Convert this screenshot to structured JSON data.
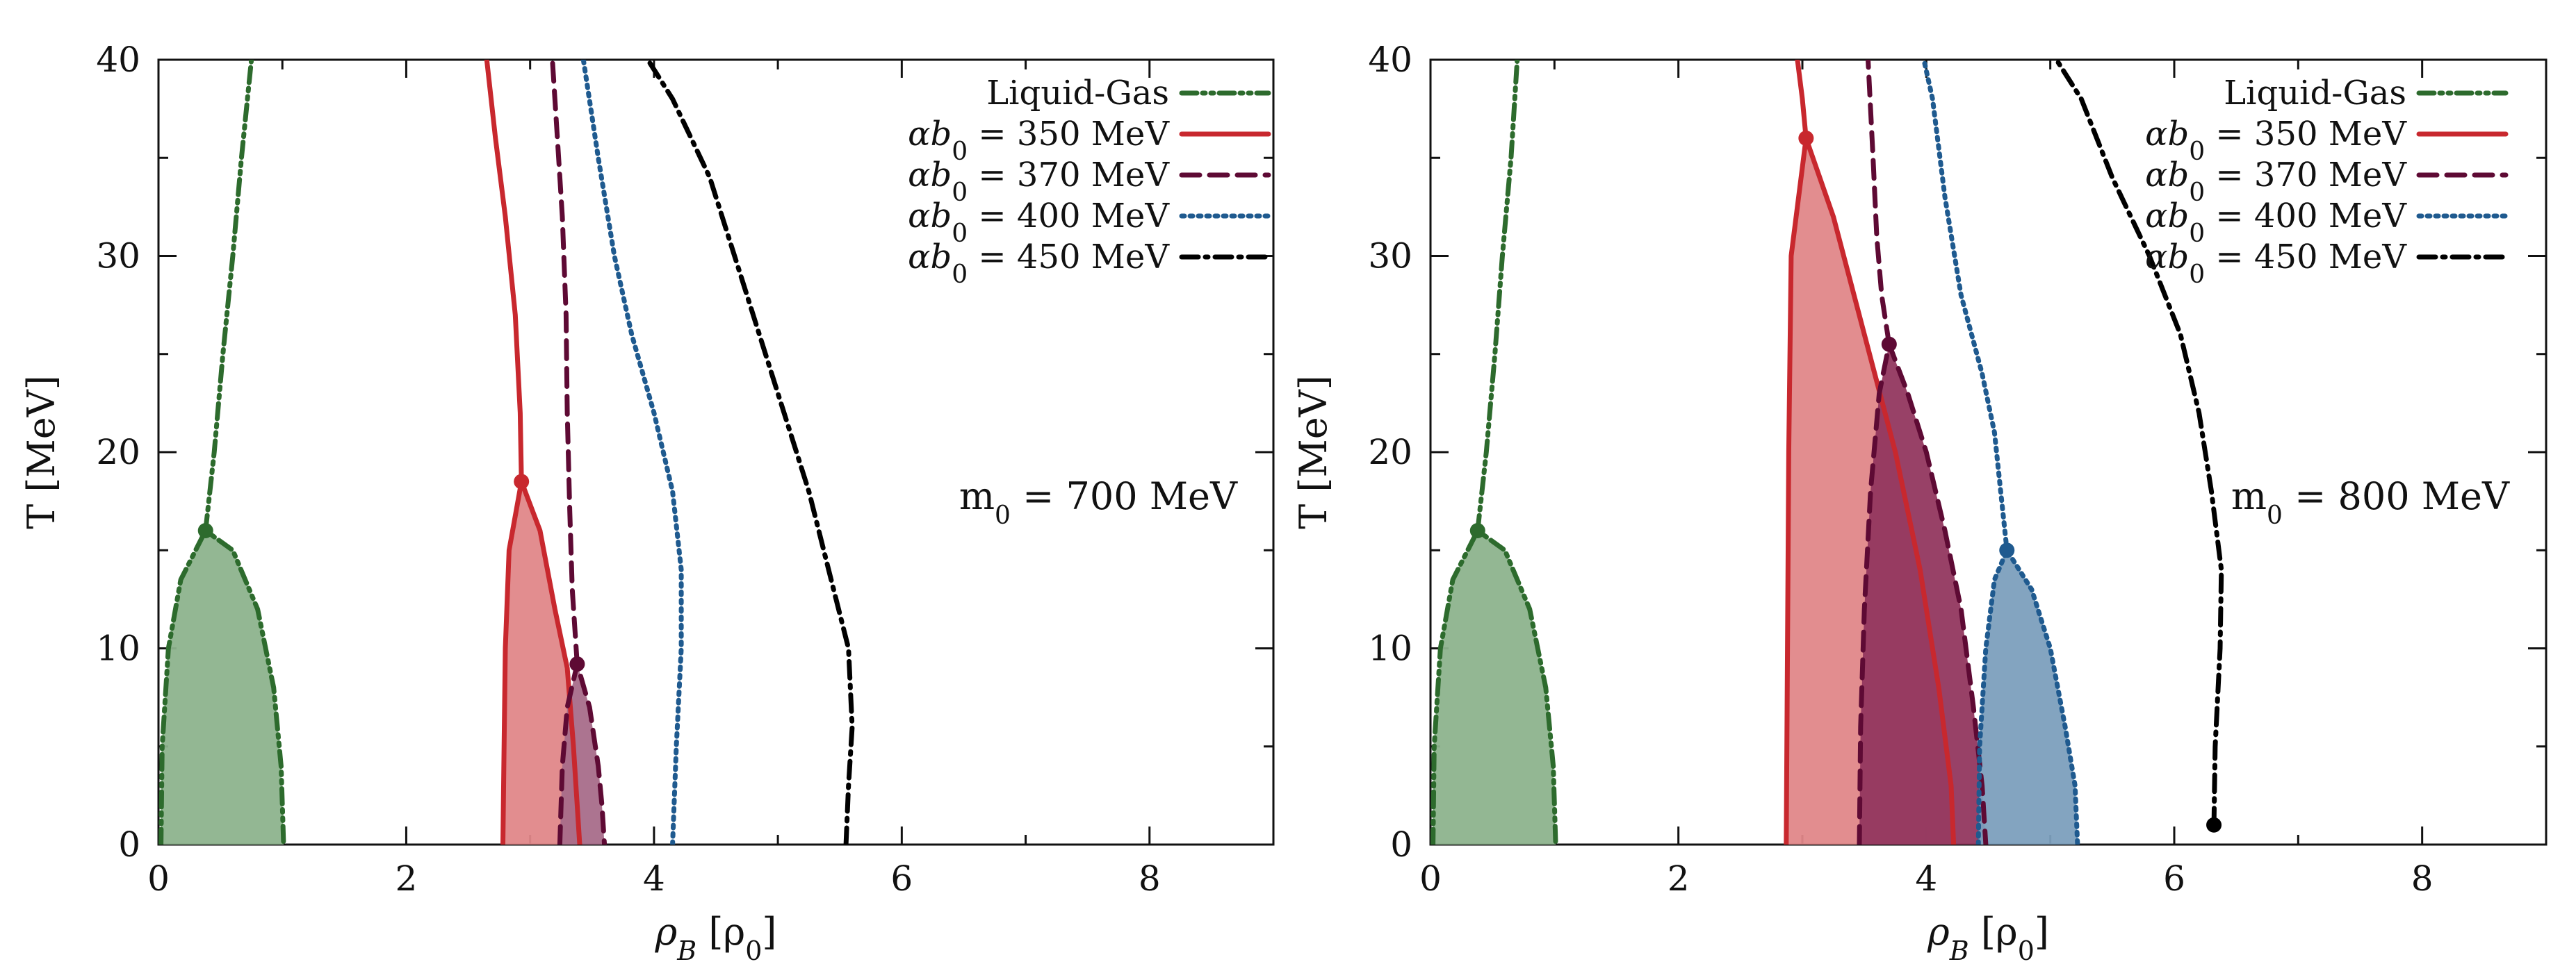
{
  "chart_data": [
    {
      "type": "line",
      "panel": "left",
      "annotation": "m0 = 700 MeV",
      "xlabel": "ρ_B [ρ_0]",
      "ylabel": "T [MeV]",
      "xlim": [
        0,
        9
      ],
      "ylim": [
        0,
        40
      ],
      "xticks": [
        0,
        2,
        4,
        6,
        8
      ],
      "yticks": [
        0,
        10,
        20,
        30,
        40
      ],
      "legend_position": "top-right",
      "series": [
        {
          "name": "Liquid-Gas",
          "color": "#2d6b2d",
          "fill": "#8db38d",
          "dash": "dashdotdot",
          "upper": [
            [
              0.38,
              16.0
            ],
            [
              0.45,
              20
            ],
            [
              0.52,
              25
            ],
            [
              0.6,
              30
            ],
            [
              0.67,
              35
            ],
            [
              0.75,
              40
            ]
          ],
          "region": [
            [
              0.02,
              0
            ],
            [
              0.03,
              5
            ],
            [
              0.08,
              10
            ],
            [
              0.18,
              13.5
            ],
            [
              0.38,
              16.0
            ],
            [
              0.6,
              15
            ],
            [
              0.8,
              12
            ],
            [
              0.93,
              8
            ],
            [
              0.99,
              4
            ],
            [
              1.01,
              0
            ]
          ],
          "critical": [
            0.38,
            16.0
          ]
        },
        {
          "name": "αb0 = 350 MeV",
          "color": "#c8282e",
          "fill": "#e08789",
          "dash": "solid",
          "upper": [
            [
              2.93,
              18.5
            ],
            [
              2.92,
              22
            ],
            [
              2.88,
              27
            ],
            [
              2.8,
              32
            ],
            [
              2.72,
              36
            ],
            [
              2.65,
              40
            ]
          ],
          "region": [
            [
              2.78,
              0
            ],
            [
              2.79,
              5
            ],
            [
              2.8,
              10
            ],
            [
              2.83,
              15
            ],
            [
              2.93,
              18.5
            ],
            [
              3.08,
              16
            ],
            [
              3.2,
              12
            ],
            [
              3.3,
              9
            ],
            [
              3.35,
              5
            ],
            [
              3.4,
              0
            ]
          ],
          "critical": [
            2.93,
            18.5
          ]
        },
        {
          "name": "αb0 = 370 MeV",
          "color": "#5e0a34",
          "fill": "#a86d8a",
          "dash": "dashed",
          "upper": [
            [
              3.38,
              9.2
            ],
            [
              3.34,
              13
            ],
            [
              3.32,
              17
            ],
            [
              3.3,
              22
            ],
            [
              3.29,
              27
            ],
            [
              3.26,
              32
            ],
            [
              3.22,
              36
            ],
            [
              3.18,
              40
            ]
          ],
          "region": [
            [
              3.24,
              0
            ],
            [
              3.26,
              4
            ],
            [
              3.3,
              7
            ],
            [
              3.38,
              9.2
            ],
            [
              3.48,
              7
            ],
            [
              3.55,
              4
            ],
            [
              3.58,
              2
            ],
            [
              3.6,
              0
            ]
          ],
          "critical": [
            3.38,
            9.2
          ]
        },
        {
          "name": "αb0 = 400 MeV",
          "color": "#1f5a8f",
          "dash": "dotted",
          "upper": [
            [
              4.15,
              0
            ],
            [
              4.18,
              5
            ],
            [
              4.22,
              10
            ],
            [
              4.22,
              14
            ],
            [
              4.15,
              18
            ],
            [
              4.0,
              22
            ],
            [
              3.82,
              26
            ],
            [
              3.68,
              30
            ],
            [
              3.55,
              35
            ],
            [
              3.43,
              40
            ]
          ],
          "region": []
        },
        {
          "name": "αb0 = 450 MeV",
          "color": "#000000",
          "dash": "dashdot",
          "upper": [
            [
              5.55,
              0
            ],
            [
              5.57,
              3
            ],
            [
              5.6,
              6
            ],
            [
              5.57,
              10
            ],
            [
              5.45,
              13
            ],
            [
              5.25,
              18
            ],
            [
              5.0,
              23
            ],
            [
              4.75,
              28
            ],
            [
              4.45,
              34
            ],
            [
              4.15,
              38
            ],
            [
              3.95,
              40
            ]
          ],
          "region": []
        }
      ]
    },
    {
      "type": "line",
      "panel": "right",
      "annotation": "m0 = 800 MeV",
      "xlabel": "ρ_B [ρ_0]",
      "ylabel": "T [MeV]",
      "xlim": [
        0,
        9
      ],
      "ylim": [
        0,
        40
      ],
      "xticks": [
        0,
        2,
        4,
        6,
        8
      ],
      "yticks": [
        0,
        10,
        20,
        30,
        40
      ],
      "legend_position": "top-right",
      "series": [
        {
          "name": "Liquid-Gas",
          "color": "#2d6b2d",
          "fill": "#8db38d",
          "dash": "dashdotdot",
          "upper": [
            [
              0.38,
              16.0
            ],
            [
              0.45,
              20
            ],
            [
              0.52,
              25
            ],
            [
              0.58,
              30
            ],
            [
              0.65,
              35
            ],
            [
              0.7,
              40
            ]
          ],
          "region": [
            [
              0.02,
              0
            ],
            [
              0.03,
              5
            ],
            [
              0.08,
              10
            ],
            [
              0.18,
              13.5
            ],
            [
              0.38,
              16.0
            ],
            [
              0.6,
              15
            ],
            [
              0.8,
              12
            ],
            [
              0.93,
              8
            ],
            [
              0.99,
              4
            ],
            [
              1.01,
              0
            ]
          ],
          "critical": [
            0.38,
            16.0
          ]
        },
        {
          "name": "αb0 = 350 MeV",
          "color": "#c8282e",
          "fill": "#e08789",
          "dash": "solid",
          "upper": [
            [
              3.03,
              36.0
            ],
            [
              3.0,
              38
            ],
            [
              2.96,
              40
            ]
          ],
          "region": [
            [
              2.87,
              0
            ],
            [
              2.88,
              10
            ],
            [
              2.89,
              20
            ],
            [
              2.91,
              30
            ],
            [
              3.03,
              36.0
            ],
            [
              3.25,
              32
            ],
            [
              3.5,
              26
            ],
            [
              3.75,
              20
            ],
            [
              3.95,
              14
            ],
            [
              4.1,
              8
            ],
            [
              4.2,
              3
            ],
            [
              4.22,
              0
            ]
          ],
          "critical": [
            3.03,
            36.0
          ]
        },
        {
          "name": "αb0 = 370 MeV",
          "color": "#5e0a34",
          "fill": "#92375f",
          "dash": "dashed",
          "upper": [
            [
              3.7,
              25.5
            ],
            [
              3.64,
              28
            ],
            [
              3.6,
              31
            ],
            [
              3.57,
              35
            ],
            [
              3.53,
              40
            ]
          ],
          "region": [
            [
              3.46,
              0
            ],
            [
              3.47,
              6
            ],
            [
              3.5,
              12
            ],
            [
              3.55,
              18
            ],
            [
              3.62,
              23
            ],
            [
              3.7,
              25.5
            ],
            [
              3.85,
              23
            ],
            [
              4.0,
              20
            ],
            [
              4.15,
              16
            ],
            [
              4.28,
              12
            ],
            [
              4.38,
              7
            ],
            [
              4.45,
              3
            ],
            [
              4.48,
              0
            ]
          ],
          "critical": [
            3.7,
            25.5
          ]
        },
        {
          "name": "αb0 = 400 MeV",
          "color": "#1f5a8f",
          "fill": "#7c9fbd",
          "dash": "dotted",
          "upper": [
            [
              4.65,
              15.0
            ],
            [
              4.6,
              18
            ],
            [
              4.55,
              21
            ],
            [
              4.45,
              24
            ],
            [
              4.28,
              28
            ],
            [
              4.15,
              33
            ],
            [
              4.05,
              38
            ],
            [
              3.98,
              40
            ]
          ],
          "region": [
            [
              4.42,
              0
            ],
            [
              4.43,
              5
            ],
            [
              4.48,
              10
            ],
            [
              4.55,
              13.5
            ],
            [
              4.65,
              15.0
            ],
            [
              4.85,
              13
            ],
            [
              5.0,
              10
            ],
            [
              5.12,
              6
            ],
            [
              5.2,
              3
            ],
            [
              5.22,
              0
            ]
          ],
          "critical": [
            4.65,
            15.0
          ]
        },
        {
          "name": "αb0 = 450 MeV",
          "color": "#000000",
          "dash": "dashdot",
          "upper": [
            [
              6.32,
              1.0
            ],
            [
              6.33,
              5
            ],
            [
              6.37,
              10
            ],
            [
              6.38,
              14
            ],
            [
              6.3,
              18
            ],
            [
              6.2,
              22
            ],
            [
              6.05,
              26
            ],
            [
              5.8,
              30
            ],
            [
              5.5,
              34
            ],
            [
              5.25,
              38
            ],
            [
              5.05,
              40
            ]
          ],
          "region": [],
          "critical": [
            6.32,
            1.0
          ]
        }
      ]
    }
  ]
}
